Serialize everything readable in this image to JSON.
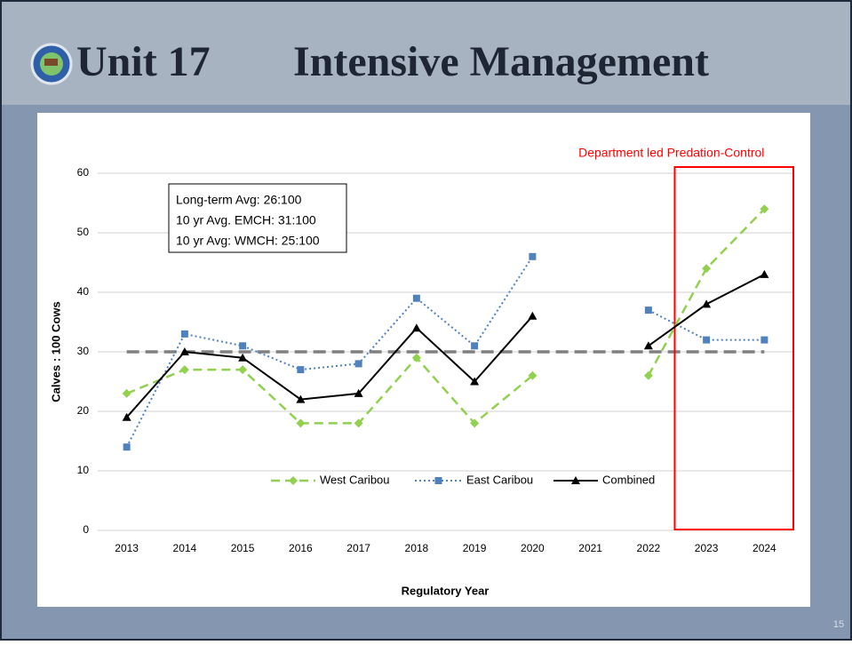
{
  "slide": {
    "title_left": "Unit 17",
    "title_right": "Intensive Management",
    "page": "15"
  },
  "chart_data": {
    "type": "line",
    "y_label": "Calves : 100 Cows",
    "x_label": "Regulatory Year",
    "categories": [
      "2013",
      "2014",
      "2015",
      "2016",
      "2017",
      "2018",
      "2019",
      "2020",
      "2021",
      "2022",
      "2023",
      "2024"
    ],
    "series": [
      {
        "name": "West Caribou",
        "color": "#92d050",
        "style": "dashed",
        "marker": "diamond",
        "values": [
          23,
          27,
          27,
          18,
          18,
          29,
          18,
          26,
          null,
          26,
          44,
          54
        ]
      },
      {
        "name": "East Caribou",
        "color": "#4f81bd",
        "style": "dotted",
        "marker": "square",
        "values": [
          14,
          33,
          31,
          27,
          28,
          39,
          31,
          46,
          null,
          37,
          32,
          32
        ]
      },
      {
        "name": "Combined",
        "color": "#000000",
        "style": "solid",
        "marker": "triangle",
        "values": [
          19,
          30,
          29,
          22,
          23,
          34,
          25,
          36,
          null,
          31,
          38,
          43
        ]
      }
    ],
    "reference_line": {
      "value": 30,
      "color": "#808080"
    },
    "ylim": [
      0,
      60
    ],
    "yticks": [
      0,
      10,
      20,
      30,
      40,
      50,
      60
    ],
    "grid": true,
    "annotation_lines": [
      "Long-term Avg: 26:100",
      "10 yr Avg. EMCH: 31:100",
      "10 yr Avg: WMCH: 25:100"
    ],
    "highlight_label": "Department led Predation-Control",
    "highlight_range": [
      "2023",
      "2024"
    ],
    "highlight_color": "#ff0000",
    "legend": "bottom"
  }
}
